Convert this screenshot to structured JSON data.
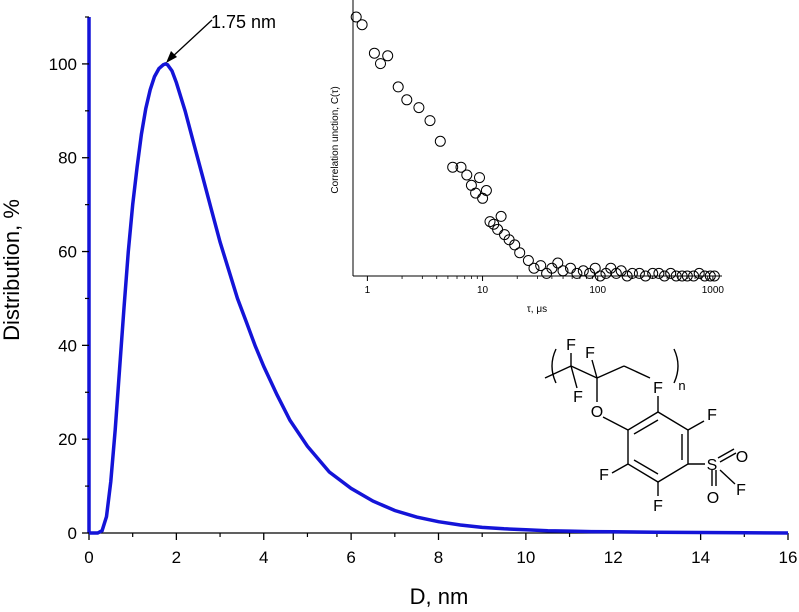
{
  "chart_data": [
    {
      "type": "line",
      "xlabel": "D, nm",
      "ylabel": "Distribution, %",
      "xlim": [
        0,
        16
      ],
      "ylim": [
        0,
        110
      ],
      "xticks": [
        0,
        2,
        4,
        6,
        8,
        10,
        12,
        14,
        16
      ],
      "yticks": [
        0,
        20,
        40,
        60,
        80,
        100
      ],
      "series_color": "#1414d8",
      "x": [
        0.0,
        0.2,
        0.3,
        0.4,
        0.5,
        0.6,
        0.7,
        0.8,
        0.9,
        1.0,
        1.1,
        1.2,
        1.3,
        1.4,
        1.5,
        1.6,
        1.7,
        1.75,
        1.8,
        1.9,
        2.0,
        2.2,
        2.4,
        2.6,
        2.8,
        3.0,
        3.2,
        3.4,
        3.6,
        3.8,
        4.0,
        4.3,
        4.6,
        5.0,
        5.5,
        6.0,
        6.5,
        7.0,
        7.5,
        8.0,
        8.5,
        9.0,
        9.5,
        10.0,
        10.5,
        11.0,
        11.5,
        12.0,
        13.0,
        14.0,
        15.0,
        16.0
      ],
      "values": [
        0.0,
        0.0,
        0.5,
        3.5,
        11.0,
        22.0,
        35.0,
        48.0,
        60.0,
        70.0,
        78.0,
        85.0,
        90.5,
        94.5,
        97.3,
        99.0,
        99.8,
        100.0,
        99.8,
        98.5,
        96.0,
        90.0,
        83.0,
        76.0,
        69.0,
        62.0,
        56.0,
        50.0,
        45.0,
        40.0,
        35.5,
        29.5,
        24.0,
        18.5,
        13.0,
        9.5,
        6.8,
        4.8,
        3.4,
        2.4,
        1.7,
        1.2,
        0.9,
        0.7,
        0.5,
        0.4,
        0.3,
        0.25,
        0.15,
        0.1,
        0.05,
        0.0
      ],
      "annotations": [
        {
          "text": "1.75 nm",
          "x": 1.75,
          "y": 100
        }
      ]
    },
    {
      "type": "scatter",
      "xlabel": "τ, μs",
      "ylabel": "Correlation unction, C(τ)",
      "xscale": "log",
      "xlim": [
        0.75,
        1200
      ],
      "ylim": [
        0,
        1.05
      ],
      "xticks": [
        1,
        10,
        100,
        1000
      ],
      "marker": "open-circle",
      "x": [
        0.8,
        0.9,
        1.15,
        1.3,
        1.5,
        1.85,
        2.2,
        2.8,
        3.5,
        4.3,
        5.5,
        6.5,
        7.3,
        8.0,
        8.7,
        9.4,
        10.0,
        10.8,
        11.6,
        12.5,
        13.5,
        14.5,
        15.5,
        17.0,
        19.0,
        21.0,
        25.0,
        28.0,
        32.0,
        36.0,
        40.0,
        45.0,
        50.0,
        58.0,
        66.0,
        75.0,
        85.0,
        95.0,
        105.0,
        118.0,
        130.0,
        145.0,
        160.0,
        180.0,
        200.0,
        230.0,
        260.0,
        300.0,
        340.0,
        380.0,
        430.0,
        480.0,
        540.0,
        600.0,
        680.0,
        760.0,
        850.0,
        950.0,
        1030.0
      ],
      "values": [
        1.0,
        0.97,
        0.86,
        0.82,
        0.85,
        0.73,
        0.68,
        0.65,
        0.6,
        0.52,
        0.42,
        0.42,
        0.39,
        0.35,
        0.32,
        0.38,
        0.3,
        0.33,
        0.21,
        0.2,
        0.18,
        0.23,
        0.16,
        0.14,
        0.12,
        0.09,
        0.06,
        0.03,
        0.04,
        0.01,
        0.03,
        0.05,
        0.02,
        0.03,
        0.01,
        0.02,
        0.01,
        0.03,
        0.0,
        0.01,
        0.03,
        0.01,
        0.02,
        0.0,
        0.01,
        0.01,
        0.0,
        0.01,
        0.01,
        0.0,
        0.01,
        0.0,
        0.0,
        0.0,
        0.0,
        0.01,
        0.0,
        0.0,
        0.0
      ]
    }
  ],
  "structure_labels": {
    "f_top1": "F",
    "f_top2": "F",
    "f_bottom": "F",
    "subscript": "n",
    "oxygen": "O",
    "ring_f_ur": "F",
    "ring_f_r": "F",
    "ring_f_l": "F",
    "ring_f_bot": "F",
    "sulfur": "S",
    "s_o1": "O",
    "s_o2": "O",
    "s_f": "F"
  }
}
